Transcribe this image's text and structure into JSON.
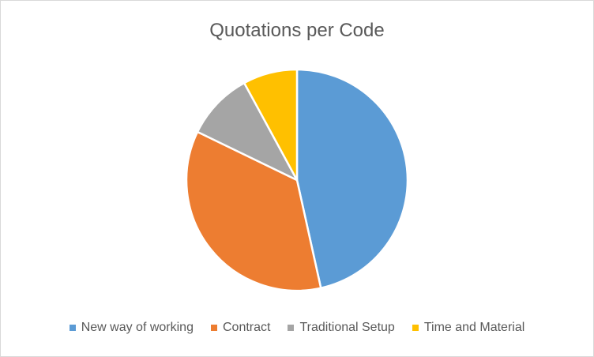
{
  "chart_data": {
    "type": "pie",
    "title": "Quotations per Code",
    "categories": [
      "New way of working",
      "Contract",
      "Traditional Setup",
      "Time and Material"
    ],
    "values": [
      47,
      36,
      10,
      8
    ],
    "colors": [
      "#5b9bd5",
      "#ed7d31",
      "#a5a5a5",
      "#ffc000"
    ],
    "legend_position": "bottom"
  }
}
